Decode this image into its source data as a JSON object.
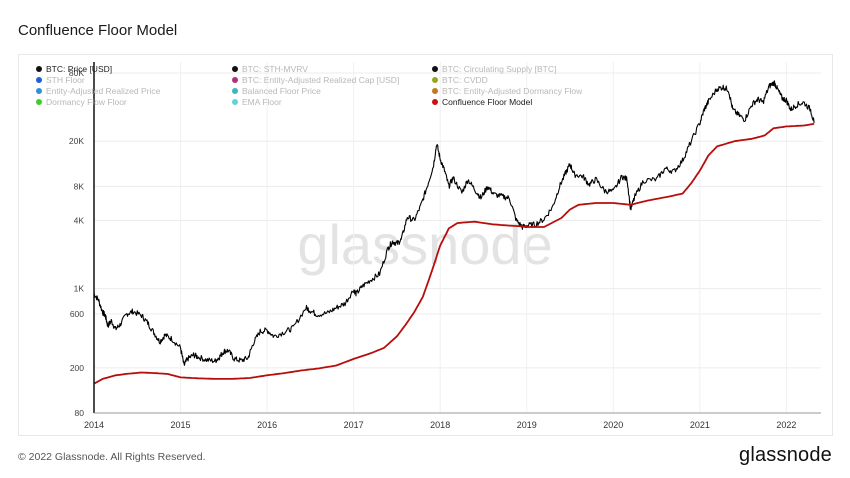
{
  "header": {
    "title": "Confluence Floor Model"
  },
  "footer": {
    "copyright": "© 2022 Glassnode. All Rights Reserved.",
    "brand": "glassnode"
  },
  "watermark": "glassnode",
  "legend": [
    {
      "label": "BTC: Price [USD]",
      "color": "#111111",
      "active": true
    },
    {
      "label": "BTC: STH-MVRV",
      "color": "#111111",
      "active": false
    },
    {
      "label": "BTC: Circulating Supply [BTC]",
      "color": "#111111",
      "active": false
    },
    {
      "label": "STH Floor",
      "color": "#1f5fd6",
      "active": false
    },
    {
      "label": "BTC: Entity-Adjusted Realized Cap [USD]",
      "color": "#b0307a",
      "active": false
    },
    {
      "label": "BTC: CVDD",
      "color": "#9aa31c",
      "active": false
    },
    {
      "label": "Entity-Adjusted Realized Price",
      "color": "#2f8fd8",
      "active": false
    },
    {
      "label": "Balanced Floor Price",
      "color": "#38b7c0",
      "active": false
    },
    {
      "label": "BTC: Entity-Adjusted Dormancy Flow",
      "color": "#c07a1c",
      "active": false
    },
    {
      "label": "Dormancy Flow Floor",
      "color": "#3ccf2a",
      "active": false
    },
    {
      "label": "EMA Floor",
      "color": "#5fd3e0",
      "active": false
    },
    {
      "label": "Confluence Floor Model",
      "color": "#cc1111",
      "active": true
    }
  ],
  "chart_data": {
    "type": "line",
    "title": "Confluence Floor Model",
    "y_scale": "log",
    "ylim": [
      80,
      100000
    ],
    "xlim": [
      2014.0,
      2022.4
    ],
    "x_ticks": [
      "2014",
      "2015",
      "2016",
      "2017",
      "2018",
      "2019",
      "2020",
      "2021",
      "2022"
    ],
    "y_ticks": [
      "80",
      "200",
      "600",
      "1K",
      "4K",
      "8K",
      "20K",
      "80K"
    ],
    "y_tick_values": [
      80,
      200,
      600,
      1000,
      4000,
      8000,
      20000,
      80000
    ],
    "series": [
      {
        "name": "BTC: Price [USD]",
        "color": "#000000",
        "points": [
          [
            2014.0,
            900
          ],
          [
            2014.05,
            800
          ],
          [
            2014.1,
            620
          ],
          [
            2014.13,
            580
          ],
          [
            2014.16,
            470
          ],
          [
            2014.2,
            520
          ],
          [
            2014.25,
            440
          ],
          [
            2014.3,
            480
          ],
          [
            2014.38,
            600
          ],
          [
            2014.45,
            630
          ],
          [
            2014.55,
            580
          ],
          [
            2014.62,
            500
          ],
          [
            2014.7,
            400
          ],
          [
            2014.76,
            340
          ],
          [
            2014.82,
            390
          ],
          [
            2014.9,
            360
          ],
          [
            2015.0,
            300
          ],
          [
            2015.04,
            210
          ],
          [
            2015.08,
            240
          ],
          [
            2015.15,
            260
          ],
          [
            2015.2,
            250
          ],
          [
            2015.3,
            235
          ],
          [
            2015.4,
            230
          ],
          [
            2015.45,
            250
          ],
          [
            2015.5,
            280
          ],
          [
            2015.55,
            285
          ],
          [
            2015.62,
            240
          ],
          [
            2015.7,
            232
          ],
          [
            2015.78,
            245
          ],
          [
            2015.84,
            330
          ],
          [
            2015.92,
            420
          ],
          [
            2016.0,
            430
          ],
          [
            2016.08,
            380
          ],
          [
            2016.2,
            415
          ],
          [
            2016.3,
            450
          ],
          [
            2016.45,
            680
          ],
          [
            2016.5,
            640
          ],
          [
            2016.58,
            590
          ],
          [
            2016.7,
            610
          ],
          [
            2016.8,
            680
          ],
          [
            2016.9,
            740
          ],
          [
            2017.0,
            980
          ],
          [
            2017.03,
            900
          ],
          [
            2017.1,
            1050
          ],
          [
            2017.2,
            1200
          ],
          [
            2017.3,
            1350
          ],
          [
            2017.4,
            2300
          ],
          [
            2017.45,
            2600
          ],
          [
            2017.5,
            2500
          ],
          [
            2017.55,
            2700
          ],
          [
            2017.62,
            4300
          ],
          [
            2017.7,
            4000
          ],
          [
            2017.78,
            5500
          ],
          [
            2017.85,
            8000
          ],
          [
            2017.92,
            12000
          ],
          [
            2017.96,
            19000
          ],
          [
            2018.0,
            14000
          ],
          [
            2018.05,
            11000
          ],
          [
            2018.1,
            8000
          ],
          [
            2018.15,
            9500
          ],
          [
            2018.25,
            7000
          ],
          [
            2018.32,
            9200
          ],
          [
            2018.4,
            7500
          ],
          [
            2018.47,
            6300
          ],
          [
            2018.55,
            8000
          ],
          [
            2018.62,
            6800
          ],
          [
            2018.72,
            6500
          ],
          [
            2018.8,
            6300
          ],
          [
            2018.88,
            4000
          ],
          [
            2018.95,
            3500
          ],
          [
            2019.0,
            3600
          ],
          [
            2019.1,
            3700
          ],
          [
            2019.2,
            4100
          ],
          [
            2019.3,
            5300
          ],
          [
            2019.38,
            8000
          ],
          [
            2019.45,
            10500
          ],
          [
            2019.5,
            12500
          ],
          [
            2019.55,
            10200
          ],
          [
            2019.65,
            9800
          ],
          [
            2019.72,
            8300
          ],
          [
            2019.8,
            9200
          ],
          [
            2019.9,
            7300
          ],
          [
            2020.0,
            7200
          ],
          [
            2020.1,
            9800
          ],
          [
            2020.16,
            9200
          ],
          [
            2020.2,
            5000
          ],
          [
            2020.25,
            6500
          ],
          [
            2020.35,
            9000
          ],
          [
            2020.5,
            9200
          ],
          [
            2020.6,
            11500
          ],
          [
            2020.7,
            10800
          ],
          [
            2020.8,
            13500
          ],
          [
            2020.88,
            18500
          ],
          [
            2021.0,
            29000
          ],
          [
            2021.05,
            38000
          ],
          [
            2021.1,
            45000
          ],
          [
            2021.2,
            58000
          ],
          [
            2021.27,
            60000
          ],
          [
            2021.33,
            57000
          ],
          [
            2021.38,
            38000
          ],
          [
            2021.45,
            34000
          ],
          [
            2021.52,
            31000
          ],
          [
            2021.6,
            42000
          ],
          [
            2021.67,
            47000
          ],
          [
            2021.73,
            44000
          ],
          [
            2021.8,
            61000
          ],
          [
            2021.86,
            66000
          ],
          [
            2021.9,
            57000
          ],
          [
            2021.95,
            48000
          ],
          [
            2022.0,
            46000
          ],
          [
            2022.05,
            38000
          ],
          [
            2022.12,
            42000
          ],
          [
            2022.2,
            44000
          ],
          [
            2022.28,
            38000
          ],
          [
            2022.32,
            29000
          ]
        ]
      },
      {
        "name": "Confluence Floor Model",
        "color": "#b80d0d",
        "points": [
          [
            2014.0,
            145
          ],
          [
            2014.1,
            160
          ],
          [
            2014.25,
            172
          ],
          [
            2014.4,
            178
          ],
          [
            2014.55,
            182
          ],
          [
            2014.7,
            180
          ],
          [
            2014.85,
            177
          ],
          [
            2015.0,
            165
          ],
          [
            2015.2,
            162
          ],
          [
            2015.4,
            160
          ],
          [
            2015.6,
            160
          ],
          [
            2015.8,
            163
          ],
          [
            2016.0,
            172
          ],
          [
            2016.2,
            180
          ],
          [
            2016.4,
            190
          ],
          [
            2016.6,
            198
          ],
          [
            2016.8,
            210
          ],
          [
            2017.0,
            240
          ],
          [
            2017.2,
            270
          ],
          [
            2017.35,
            300
          ],
          [
            2017.5,
            380
          ],
          [
            2017.6,
            480
          ],
          [
            2017.7,
            620
          ],
          [
            2017.8,
            850
          ],
          [
            2017.9,
            1400
          ],
          [
            2018.0,
            2400
          ],
          [
            2018.1,
            3400
          ],
          [
            2018.2,
            3800
          ],
          [
            2018.4,
            3900
          ],
          [
            2018.6,
            3700
          ],
          [
            2018.8,
            3600
          ],
          [
            2018.95,
            3550
          ],
          [
            2019.0,
            3500
          ],
          [
            2019.2,
            3500
          ],
          [
            2019.4,
            4200
          ],
          [
            2019.5,
            5000
          ],
          [
            2019.6,
            5500
          ],
          [
            2019.8,
            5700
          ],
          [
            2020.0,
            5700
          ],
          [
            2020.2,
            5500
          ],
          [
            2020.4,
            6000
          ],
          [
            2020.6,
            6400
          ],
          [
            2020.8,
            6900
          ],
          [
            2020.9,
            8500
          ],
          [
            2021.0,
            11000
          ],
          [
            2021.1,
            15000
          ],
          [
            2021.2,
            18000
          ],
          [
            2021.4,
            20000
          ],
          [
            2021.6,
            21000
          ],
          [
            2021.75,
            22500
          ],
          [
            2021.85,
            26000
          ],
          [
            2022.0,
            27000
          ],
          [
            2022.2,
            27500
          ],
          [
            2022.32,
            28500
          ]
        ]
      }
    ]
  }
}
